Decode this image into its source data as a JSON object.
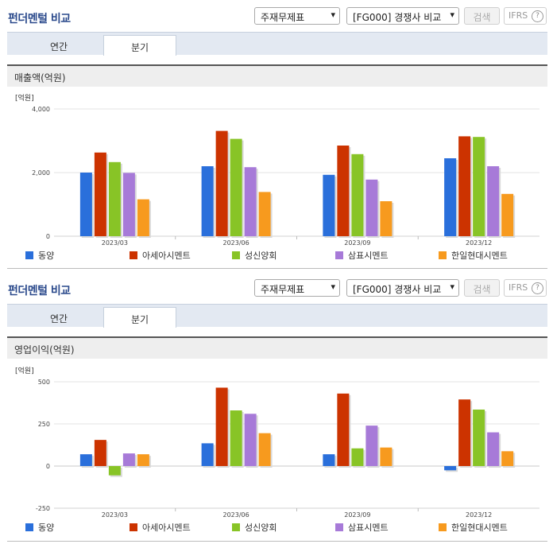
{
  "panels": [
    {
      "title": "펀더멘털 비교",
      "select1": "주재무제표",
      "select2": "[FG000] 경쟁사 비교",
      "search_label": "검색",
      "ifrs_label": "IFRS",
      "help_glyph": "?",
      "tabs": [
        "연간",
        "분기"
      ],
      "active_tab": "분기",
      "section_title": "매출액(억원)"
    },
    {
      "title": "펀더멘털 비교",
      "select1": "주재무제표",
      "select2": "[FG000] 경쟁사 비교",
      "search_label": "검색",
      "ifrs_label": "IFRS",
      "help_glyph": "?",
      "tabs": [
        "연간",
        "분기"
      ],
      "active_tab": "분기",
      "section_title": "영업이익(억원)"
    }
  ],
  "chart_data": [
    {
      "type": "bar",
      "unit_label": "[억원]",
      "categories": [
        "2023/03",
        "2023/06",
        "2023/09",
        "2023/12"
      ],
      "ylim": [
        0,
        4000
      ],
      "yticks": [
        0,
        2000,
        4000
      ],
      "ytick_labels": [
        "0",
        "2,000",
        "4,000"
      ],
      "series": [
        {
          "name": "동양",
          "color": "#2a6fdb",
          "values": [
            2000,
            2200,
            1930,
            2450
          ]
        },
        {
          "name": "아세아시멘트",
          "color": "#cc3300",
          "values": [
            2630,
            3310,
            2850,
            3140
          ]
        },
        {
          "name": "성신양회",
          "color": "#88c426",
          "values": [
            2330,
            3060,
            2580,
            3120
          ]
        },
        {
          "name": "삼표시멘트",
          "color": "#a77ad8",
          "values": [
            1990,
            2170,
            1780,
            2200
          ]
        },
        {
          "name": "한일현대시멘트",
          "color": "#f79a1e",
          "values": [
            1160,
            1390,
            1100,
            1330
          ]
        }
      ]
    },
    {
      "type": "bar",
      "unit_label": "[억원]",
      "categories": [
        "2023/03",
        "2023/06",
        "2023/09",
        "2023/12"
      ],
      "ylim": [
        -250,
        500
      ],
      "yticks": [
        -250,
        0,
        250,
        500
      ],
      "ytick_labels": [
        "-250",
        "0",
        "250",
        "500"
      ],
      "series": [
        {
          "name": "동양",
          "color": "#2a6fdb",
          "values": [
            70,
            135,
            70,
            -25
          ]
        },
        {
          "name": "아세아시멘트",
          "color": "#cc3300",
          "values": [
            155,
            465,
            430,
            395
          ]
        },
        {
          "name": "성신양회",
          "color": "#88c426",
          "values": [
            -55,
            330,
            105,
            335
          ]
        },
        {
          "name": "삼표시멘트",
          "color": "#a77ad8",
          "values": [
            75,
            310,
            240,
            200
          ]
        },
        {
          "name": "한일현대시멘트",
          "color": "#f79a1e",
          "values": [
            70,
            195,
            110,
            88
          ]
        }
      ]
    }
  ]
}
